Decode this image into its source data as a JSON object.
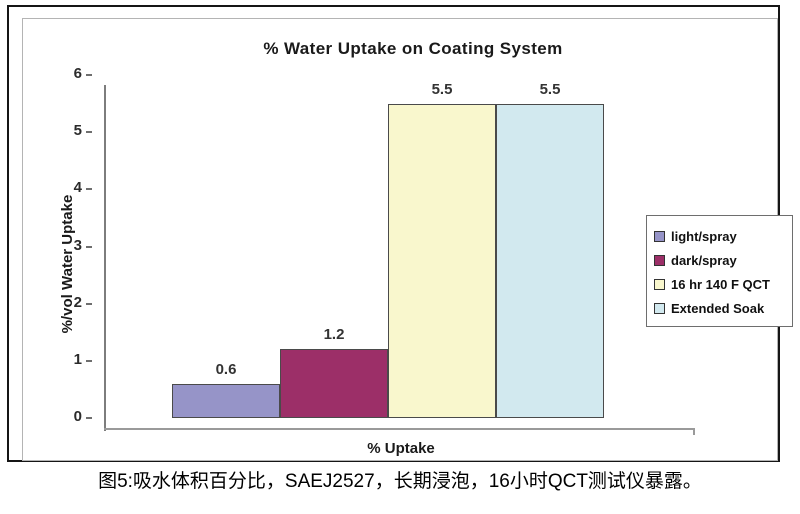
{
  "figure": {
    "caption": "图5:吸水体积百分比，SAEJ2527，长期浸泡，16小时QCT测试仪暴露。"
  },
  "chart_data": {
    "type": "bar",
    "title": "% Water Uptake on Coating System",
    "xlabel": "% Uptake",
    "ylabel": "%/vol Water Uptake",
    "categories": [
      "light/spray",
      "dark/spray",
      "16 hr 140 F QCT",
      "Extended Soak"
    ],
    "values": [
      0.6,
      1.2,
      5.5,
      5.5
    ],
    "data_labels": [
      "0.6",
      "1.2",
      "5.5",
      "5.5"
    ],
    "series_colors": [
      "#9694c8",
      "#9c2f68",
      "#f9f7cd",
      "#d2e9ef"
    ],
    "ylim": [
      0,
      6
    ],
    "ytick_labels": [
      "0",
      "1",
      "2",
      "3",
      "4",
      "5",
      "6"
    ],
    "grid": false,
    "legend": {
      "position": "right",
      "entries": [
        "light/spray",
        "dark/spray",
        "16 hr 140 F QCT",
        "Extended Soak"
      ]
    },
    "colors": {
      "axis": "#9a9a9a",
      "bar_border": "#4a4a4a",
      "outer_border": "#151515",
      "frame_border": "#b4b4b4"
    }
  }
}
